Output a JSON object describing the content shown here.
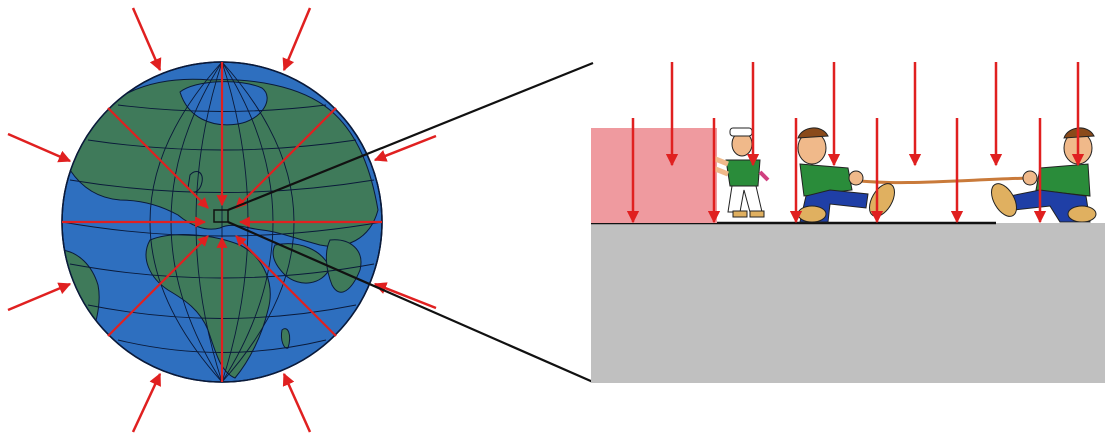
{
  "diagram": {
    "colors": {
      "arrow": "#e02020",
      "ocean": "#2e6fbf",
      "land": "#3f7a5a",
      "graticule": "#0a1a3a",
      "ground": "#c0c0c0",
      "box": "#ef9a9f",
      "line": "#111111",
      "rope": "#c97a3a",
      "shirt": "#2a8c3a",
      "trousers": "#1f3fa6",
      "skin": "#f0b98a"
    },
    "icons": {
      "globe": "earth-globe-icon",
      "inward_arrow": "arrow-icon",
      "zoom_box": "zoom-square-icon",
      "block": "block-icon",
      "pusher": "pushing-man-icon",
      "puller": "rope-pulling-man-icon"
    },
    "counts": {
      "inward_arrows_around_globe": 8,
      "down_arrows_on_surface": 13
    }
  }
}
